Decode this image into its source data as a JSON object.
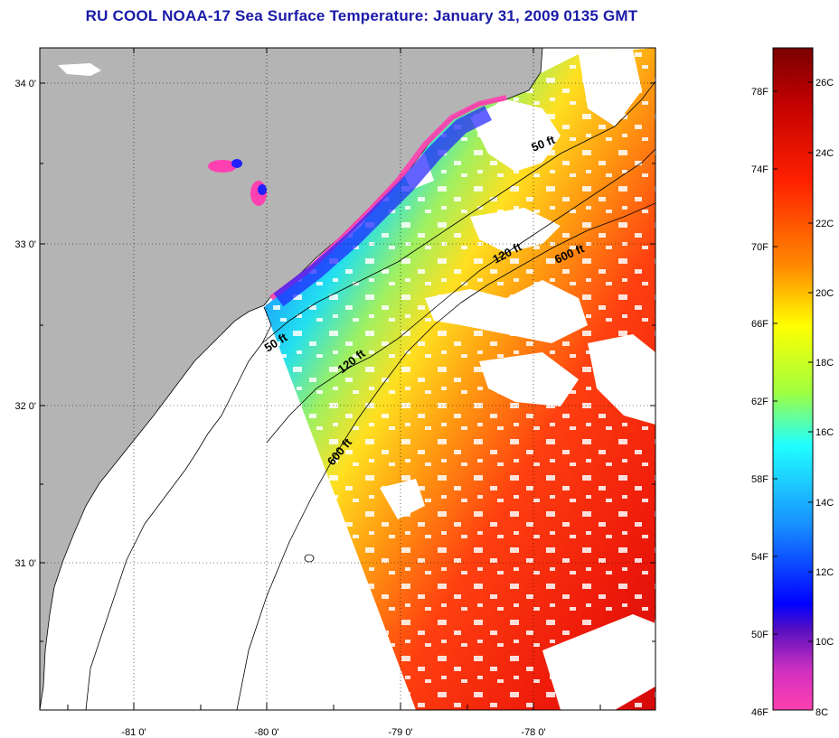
{
  "title": "RU COOL  NOAA-17  Sea Surface Temperature:  January 31, 2009 0135 GMT",
  "lat_labels": [
    "34 0'",
    "33 0'",
    "32 0'",
    "31 0'"
  ],
  "lon_labels": [
    "-81 0'",
    "-80 0'",
    "-79 0'",
    "-78 0'"
  ],
  "contours": [
    {
      "label": "50 ft"
    },
    {
      "label": "120 ft"
    },
    {
      "label": "600 ft"
    }
  ],
  "colorbar": {
    "fahrenheit_labels": [
      "78F",
      "74F",
      "70F",
      "66F",
      "62F",
      "58F",
      "54F",
      "50F",
      "46F"
    ],
    "celsius_labels": [
      "26C",
      "24C",
      "22C",
      "20C",
      "18C",
      "16C",
      "14C",
      "12C",
      "10C",
      "8C"
    ]
  },
  "colors": {
    "land": "#b4b4b4",
    "title": "#1a1aa8",
    "cloud": "#ffffff"
  }
}
